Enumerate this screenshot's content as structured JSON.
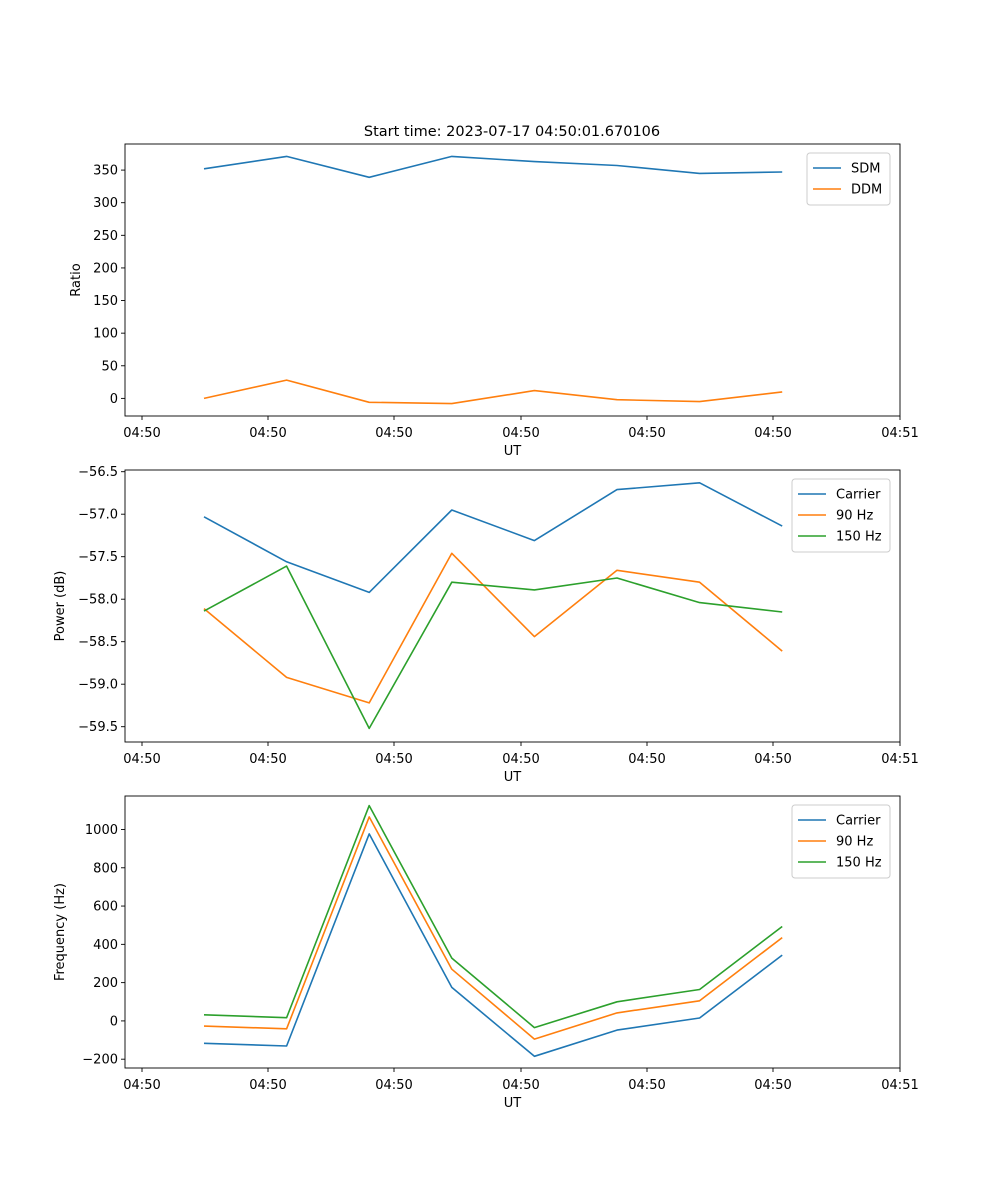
{
  "figure": {
    "title": "Start time: 2023-07-17 04:50:01.670106"
  },
  "chart_data": [
    {
      "type": "line",
      "title": "Start time: 2023-07-17 04:50:01.670106",
      "xlabel": "UT",
      "ylabel": "Ratio",
      "x_tick_labels": [
        "04:50",
        "04:50",
        "04:50",
        "04:50",
        "04:50",
        "04:50",
        "04:50"
      ],
      "x_tick_end_label": "04:51",
      "x_points": 8,
      "ylim": [
        -27,
        390
      ],
      "yticks": [
        0,
        50,
        100,
        150,
        200,
        250,
        300,
        350
      ],
      "ytick_labels": [
        "0",
        "50",
        "100",
        "150",
        "200",
        "250",
        "300",
        "350"
      ],
      "legend_position": "top-right",
      "series": [
        {
          "name": "SDM",
          "color": "#1f77b4",
          "values": [
            352,
            371,
            339,
            371,
            363,
            357,
            345,
            347
          ]
        },
        {
          "name": "DDM",
          "color": "#ff7f0e",
          "values": [
            0,
            28,
            -6,
            -8,
            12,
            -2,
            -5,
            10
          ]
        }
      ]
    },
    {
      "type": "line",
      "title": "",
      "xlabel": "UT",
      "ylabel": "Power (dB)",
      "x_tick_labels": [
        "04:50",
        "04:50",
        "04:50",
        "04:50",
        "04:50",
        "04:50",
        "04:50"
      ],
      "x_tick_end_label": "04:51",
      "x_points": 8,
      "ylim": [
        -59.68,
        -56.48
      ],
      "yticks": [
        -59.5,
        -59.0,
        -58.5,
        -58.0,
        -57.5,
        -57.0,
        -56.5
      ],
      "ytick_labels": [
        "−59.5",
        "−59.0",
        "−58.5",
        "−58.0",
        "−57.5",
        "−57.0",
        "−56.5"
      ],
      "legend_position": "top-right",
      "series": [
        {
          "name": "Carrier",
          "color": "#1f77b4",
          "values": [
            -57.03,
            -57.56,
            -57.92,
            -56.95,
            -57.31,
            -56.71,
            -56.63,
            -57.14
          ]
        },
        {
          "name": "90 Hz",
          "color": "#ff7f0e",
          "values": [
            -58.11,
            -58.92,
            -59.22,
            -57.46,
            -58.44,
            -57.66,
            -57.8,
            -58.61
          ]
        },
        {
          "name": "150 Hz",
          "color": "#2ca02c",
          "values": [
            -58.14,
            -57.61,
            -59.52,
            -57.8,
            -57.89,
            -57.75,
            -58.04,
            -58.15
          ]
        }
      ]
    },
    {
      "type": "line",
      "title": "",
      "xlabel": "UT",
      "ylabel": "Frequency (Hz)",
      "x_tick_labels": [
        "04:50",
        "04:50",
        "04:50",
        "04:50",
        "04:50",
        "04:50",
        "04:50"
      ],
      "x_tick_end_label": "04:51",
      "x_points": 8,
      "ylim": [
        -246,
        1175
      ],
      "yticks": [
        -200,
        0,
        200,
        400,
        600,
        800,
        1000
      ],
      "ytick_labels": [
        "−200",
        "0",
        "200",
        "400",
        "600",
        "800",
        "1000"
      ],
      "legend_position": "top-right",
      "series": [
        {
          "name": "Carrier",
          "color": "#1f77b4",
          "values": [
            -117,
            -131,
            977,
            175,
            -185,
            -48,
            15,
            344
          ]
        },
        {
          "name": "90 Hz",
          "color": "#ff7f0e",
          "values": [
            -27,
            -41,
            1066,
            270,
            -95,
            42,
            105,
            435
          ]
        },
        {
          "name": "150 Hz",
          "color": "#2ca02c",
          "values": [
            32,
            17,
            1125,
            328,
            -35,
            100,
            164,
            493
          ]
        }
      ]
    }
  ]
}
